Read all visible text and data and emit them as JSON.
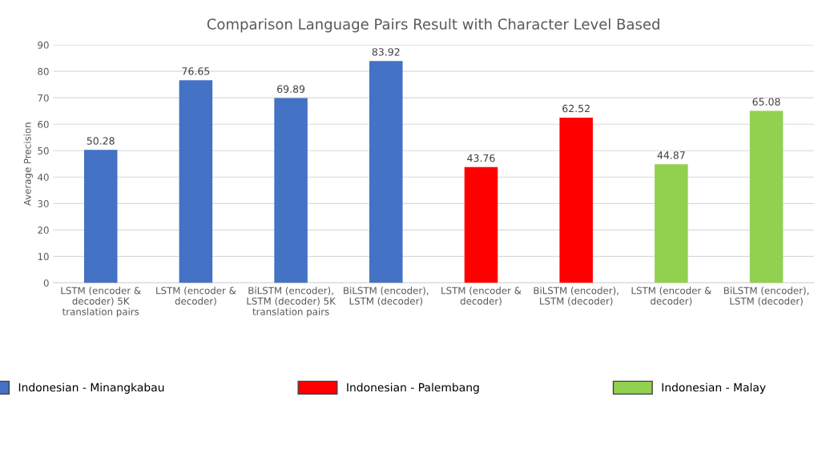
{
  "chart_data": {
    "type": "bar",
    "title": "Comparison Language Pairs Result with Character Level Based",
    "ylabel": "Average Precision",
    "categories": [
      "LSTM (encoder & decoder) 5K translation pairs",
      "LSTM (encoder & decoder)",
      "BiLSTM (encoder), LSTM (decoder) 5K translation pairs",
      "BiLSTM (encoder), LSTM (decoder)",
      "LSTM (encoder & decoder)",
      "BiLSTM (encoder), LSTM (decoder)",
      "LSTM (encoder & decoder)",
      "BiLSTM (encoder), LSTM (decoder)"
    ],
    "series": [
      {
        "name": "Indonesian - Minangkabau",
        "color": "#4472c4",
        "values": [
          50.28,
          76.65,
          69.89,
          83.92,
          null,
          null,
          null,
          null
        ]
      },
      {
        "name": "Indonesian - Palembang",
        "color": "#ff0000",
        "values": [
          null,
          null,
          null,
          null,
          43.76,
          62.52,
          null,
          null
        ]
      },
      {
        "name": "Indonesian - Malay",
        "color": "#92d050",
        "values": [
          null,
          null,
          null,
          null,
          null,
          null,
          44.87,
          65.08
        ]
      }
    ],
    "ylim": [
      0,
      90
    ],
    "yticks": [
      0,
      10,
      20,
      30,
      40,
      50,
      60,
      70,
      80,
      90
    ],
    "grid": "y",
    "legend": "bottom",
    "data_labels": true
  }
}
